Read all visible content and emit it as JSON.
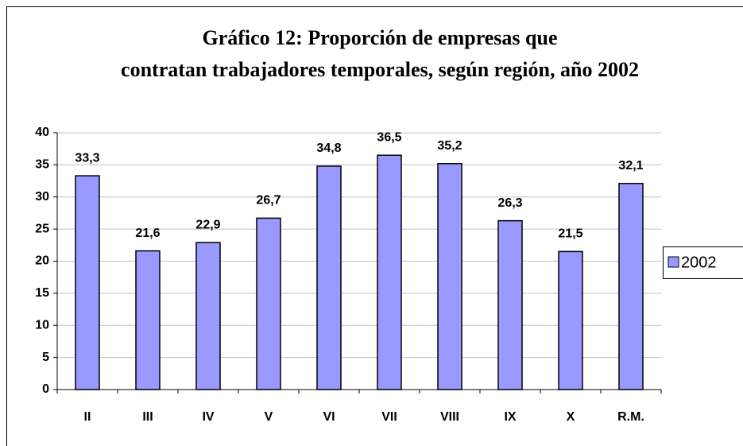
{
  "chart_data": {
    "type": "bar",
    "title": "Gráfico 12: Proporción de empresas que contratan trabajadores temporales, según región, año 2002",
    "categories": [
      "II",
      "III",
      "IV",
      "V",
      "VI",
      "VII",
      "VIII",
      "IX",
      "X",
      "R.M."
    ],
    "series": [
      {
        "name": "2002",
        "color": "#9999ff",
        "values": [
          33.3,
          21.6,
          22.9,
          26.7,
          34.8,
          36.5,
          35.2,
          26.3,
          21.5,
          32.1
        ],
        "value_labels": [
          "33,3",
          "21,6",
          "22,9",
          "26,7",
          "34,8",
          "36,5",
          "35,2",
          "26,3",
          "21,5",
          "32,1"
        ]
      }
    ],
    "ylim": [
      0,
      40
    ],
    "yticks": [
      0,
      5,
      10,
      15,
      20,
      25,
      30,
      35,
      40
    ],
    "grid": true,
    "legend": "right"
  }
}
